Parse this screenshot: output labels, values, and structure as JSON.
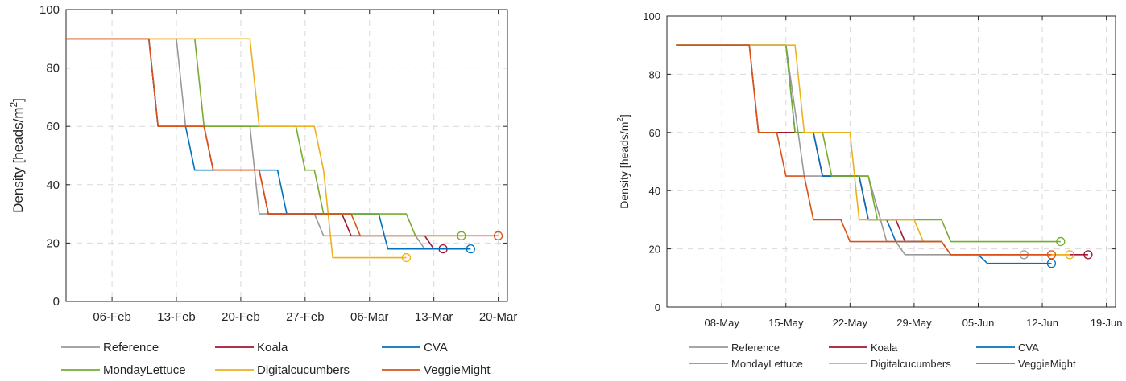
{
  "colors": {
    "Reference": "#999999",
    "Koala": "#a2142f",
    "CVA": "#0072bd",
    "MondayLettuce": "#77ac30",
    "Digitalcucumbers": "#edb120",
    "VeggieMight": "#d95319"
  },
  "chart_data": [
    {
      "type": "line",
      "ylabel": "Density [heads/m",
      "ylabel_sup": "2",
      "ylabel_end": "]",
      "ylim": [
        0,
        100
      ],
      "yticks": [
        0,
        20,
        40,
        60,
        80,
        100
      ],
      "xlim": [
        "2021-02-01",
        "2021-03-21"
      ],
      "xticks": [
        {
          "date": "2021-02-06",
          "label": "06-Feb"
        },
        {
          "date": "2021-02-13",
          "label": "13-Feb"
        },
        {
          "date": "2021-02-20",
          "label": "20-Feb"
        },
        {
          "date": "2021-02-27",
          "label": "27-Feb"
        },
        {
          "date": "2021-03-06",
          "label": "06-Mar"
        },
        {
          "date": "2021-03-13",
          "label": "13-Mar"
        },
        {
          "date": "2021-03-20",
          "label": "20-Mar"
        }
      ],
      "grid": true,
      "legend": "bottom",
      "series": [
        {
          "name": "Reference",
          "end_marker": false,
          "points": [
            [
              "2021-02-01",
              90
            ],
            [
              "2021-02-13",
              90
            ],
            [
              "2021-02-14",
              60
            ],
            [
              "2021-02-21",
              60
            ],
            [
              "2021-02-22",
              30
            ],
            [
              "2021-02-28",
              30
            ],
            [
              "2021-03-01",
              22.5
            ],
            [
              "2021-03-11",
              22.5
            ],
            [
              "2021-03-12",
              18
            ],
            [
              "2021-03-14",
              18
            ]
          ]
        },
        {
          "name": "Koala",
          "end_marker": true,
          "points": [
            [
              "2021-02-01",
              90
            ],
            [
              "2021-02-10",
              90
            ],
            [
              "2021-02-11",
              60
            ],
            [
              "2021-02-16",
              60
            ],
            [
              "2021-02-17",
              45
            ],
            [
              "2021-02-22",
              45
            ],
            [
              "2021-02-23",
              30
            ],
            [
              "2021-03-03",
              30
            ],
            [
              "2021-03-04",
              22.5
            ],
            [
              "2021-03-12",
              22.5
            ],
            [
              "2021-03-13",
              18
            ],
            [
              "2021-03-14",
              18
            ]
          ]
        },
        {
          "name": "CVA",
          "end_marker": true,
          "points": [
            [
              "2021-02-01",
              90
            ],
            [
              "2021-02-10",
              90
            ],
            [
              "2021-02-11",
              60
            ],
            [
              "2021-02-14",
              60
            ],
            [
              "2021-02-15",
              45
            ],
            [
              "2021-02-24",
              45
            ],
            [
              "2021-02-25",
              30
            ],
            [
              "2021-03-07",
              30
            ],
            [
              "2021-03-08",
              18
            ],
            [
              "2021-03-17",
              18
            ]
          ]
        },
        {
          "name": "MondayLettuce",
          "end_marker": true,
          "points": [
            [
              "2021-02-01",
              90
            ],
            [
              "2021-02-15",
              90
            ],
            [
              "2021-02-16",
              60
            ],
            [
              "2021-02-26",
              60
            ],
            [
              "2021-02-27",
              45
            ],
            [
              "2021-02-28",
              45
            ],
            [
              "2021-02-29",
              30
            ],
            [
              "2021-03-10",
              30
            ],
            [
              "2021-03-11",
              22.5
            ],
            [
              "2021-03-16",
              22.5
            ]
          ]
        },
        {
          "name": "Digitalcucumbers",
          "end_marker": true,
          "points": [
            [
              "2021-02-01",
              90
            ],
            [
              "2021-02-21",
              90
            ],
            [
              "2021-02-22",
              60
            ],
            [
              "2021-02-28",
              60
            ],
            [
              "2021-02-29",
              45
            ],
            [
              "2021-03-01",
              45
            ],
            [
              "2021-03-02",
              15
            ],
            [
              "2021-03-10",
              15
            ]
          ]
        },
        {
          "name": "VeggieMight",
          "end_marker": true,
          "points": [
            [
              "2021-02-01",
              90
            ],
            [
              "2021-02-10",
              90
            ],
            [
              "2021-02-11",
              60
            ],
            [
              "2021-02-16",
              60
            ],
            [
              "2021-02-17",
              45
            ],
            [
              "2021-02-22",
              45
            ],
            [
              "2021-02-23",
              30
            ],
            [
              "2021-03-04",
              30
            ],
            [
              "2021-03-05",
              22.5
            ],
            [
              "2021-03-20",
              22.5
            ]
          ]
        }
      ]
    },
    {
      "type": "line",
      "ylabel": "Density [heads/m",
      "ylabel_sup": "2",
      "ylabel_end": "]",
      "ylim": [
        0,
        100
      ],
      "yticks": [
        0,
        20,
        40,
        60,
        80,
        100
      ],
      "xlim": [
        "2021-05-02",
        "2021-06-20"
      ],
      "xticks": [
        {
          "date": "2021-05-08",
          "label": "08-May"
        },
        {
          "date": "2021-05-15",
          "label": "15-May"
        },
        {
          "date": "2021-05-22",
          "label": "22-May"
        },
        {
          "date": "2021-05-29",
          "label": "29-May"
        },
        {
          "date": "2021-06-05",
          "label": "05-Jun"
        },
        {
          "date": "2021-06-12",
          "label": "12-Jun"
        },
        {
          "date": "2021-06-19",
          "label": "19-Jun"
        }
      ],
      "grid": true,
      "legend": "bottom",
      "series": [
        {
          "name": "Reference",
          "end_marker": true,
          "points": [
            [
              "2021-05-03",
              90
            ],
            [
              "2021-05-15",
              90
            ],
            [
              "2021-05-17",
              45
            ],
            [
              "2021-05-24",
              45
            ],
            [
              "2021-05-26",
              22.5
            ],
            [
              "2021-05-27",
              22.5
            ],
            [
              "2021-05-28",
              18
            ],
            [
              "2021-06-10",
              18
            ]
          ]
        },
        {
          "name": "Koala",
          "end_marker": true,
          "points": [
            [
              "2021-05-03",
              90
            ],
            [
              "2021-05-11",
              90
            ],
            [
              "2021-05-12",
              60
            ],
            [
              "2021-05-18",
              60
            ],
            [
              "2021-05-19",
              45
            ],
            [
              "2021-05-23",
              45
            ],
            [
              "2021-05-24",
              30
            ],
            [
              "2021-05-27",
              30
            ],
            [
              "2021-05-28",
              22.5
            ],
            [
              "2021-06-01",
              22.5
            ],
            [
              "2021-06-02",
              18
            ],
            [
              "2021-06-17",
              18
            ]
          ]
        },
        {
          "name": "CVA",
          "end_marker": true,
          "points": [
            [
              "2021-05-03",
              90
            ],
            [
              "2021-05-15",
              90
            ],
            [
              "2021-05-16",
              60
            ],
            [
              "2021-05-18",
              60
            ],
            [
              "2021-05-19",
              45
            ],
            [
              "2021-05-23",
              45
            ],
            [
              "2021-05-24",
              30
            ],
            [
              "2021-05-26",
              30
            ],
            [
              "2021-05-27",
              22.5
            ],
            [
              "2021-06-01",
              22.5
            ],
            [
              "2021-06-02",
              18
            ],
            [
              "2021-06-05",
              18
            ],
            [
              "2021-06-06",
              15
            ],
            [
              "2021-06-13",
              15
            ]
          ]
        },
        {
          "name": "MondayLettuce",
          "end_marker": true,
          "points": [
            [
              "2021-05-03",
              90
            ],
            [
              "2021-05-15",
              90
            ],
            [
              "2021-05-16",
              60
            ],
            [
              "2021-05-19",
              60
            ],
            [
              "2021-05-20",
              45
            ],
            [
              "2021-05-24",
              45
            ],
            [
              "2021-05-25",
              30
            ],
            [
              "2021-06-01",
              30
            ],
            [
              "2021-06-02",
              22.5
            ],
            [
              "2021-06-14",
              22.5
            ]
          ]
        },
        {
          "name": "Digitalcucumbers",
          "end_marker": true,
          "points": [
            [
              "2021-05-03",
              90
            ],
            [
              "2021-05-16",
              90
            ],
            [
              "2021-05-17",
              60
            ],
            [
              "2021-05-22",
              60
            ],
            [
              "2021-05-23",
              30
            ],
            [
              "2021-05-29",
              30
            ],
            [
              "2021-05-30",
              22.5
            ],
            [
              "2021-06-01",
              22.5
            ],
            [
              "2021-06-02",
              18
            ],
            [
              "2021-06-15",
              18
            ]
          ]
        },
        {
          "name": "VeggieMight",
          "end_marker": true,
          "points": [
            [
              "2021-05-03",
              90
            ],
            [
              "2021-05-11",
              90
            ],
            [
              "2021-05-12",
              60
            ],
            [
              "2021-05-14",
              60
            ],
            [
              "2021-05-15",
              45
            ],
            [
              "2021-05-17",
              45
            ],
            [
              "2021-05-18",
              30
            ],
            [
              "2021-05-21",
              30
            ],
            [
              "2021-05-22",
              22.5
            ],
            [
              "2021-06-01",
              22.5
            ],
            [
              "2021-06-02",
              18
            ],
            [
              "2021-06-13",
              18
            ]
          ]
        }
      ]
    }
  ],
  "legend": {
    "entries": [
      "Reference",
      "Koala",
      "CVA",
      "MondayLettuce",
      "Digitalcucumbers",
      "VeggieMight"
    ]
  }
}
